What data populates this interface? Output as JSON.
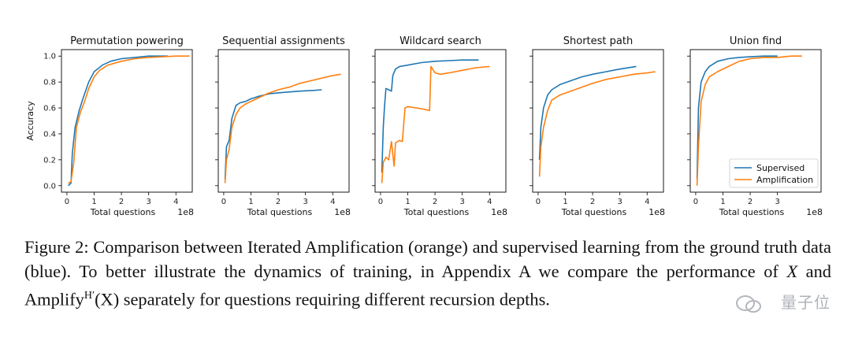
{
  "chart_data": [
    {
      "type": "line",
      "title": "Permutation powering",
      "xlabel": "Total questions",
      "ylabel": "Accuracy",
      "x_multiplier": "1e8",
      "xlim": [
        -0.2,
        4.6
      ],
      "ylim": [
        -0.05,
        1.05
      ],
      "xticks": [
        0,
        1,
        2,
        3,
        4
      ],
      "yticks": [
        0.0,
        0.2,
        0.4,
        0.6,
        0.8,
        1.0
      ],
      "series": [
        {
          "color": "#1f77b4",
          "points": [
            [
              0.05,
              0.0
            ],
            [
              0.15,
              0.02
            ],
            [
              0.2,
              0.25
            ],
            [
              0.3,
              0.45
            ],
            [
              0.45,
              0.58
            ],
            [
              0.6,
              0.68
            ],
            [
              0.8,
              0.8
            ],
            [
              1.0,
              0.88
            ],
            [
              1.3,
              0.93
            ],
            [
              1.6,
              0.96
            ],
            [
              2.0,
              0.98
            ],
            [
              2.5,
              0.99
            ],
            [
              3.0,
              1.0
            ],
            [
              3.7,
              1.0
            ]
          ]
        },
        {
          "color": "#ff7f0e",
          "points": [
            [
              0.05,
              0.02
            ],
            [
              0.15,
              0.03
            ],
            [
              0.25,
              0.18
            ],
            [
              0.35,
              0.45
            ],
            [
              0.5,
              0.57
            ],
            [
              0.65,
              0.65
            ],
            [
              0.8,
              0.75
            ],
            [
              1.0,
              0.84
            ],
            [
              1.2,
              0.89
            ],
            [
              1.5,
              0.93
            ],
            [
              2.0,
              0.96
            ],
            [
              2.5,
              0.98
            ],
            [
              3.0,
              0.99
            ],
            [
              3.5,
              0.995
            ],
            [
              4.0,
              1.0
            ],
            [
              4.5,
              1.0
            ]
          ]
        }
      ]
    },
    {
      "type": "line",
      "title": "Sequential assignments",
      "xlabel": "Total questions",
      "ylabel": "",
      "x_multiplier": "1e8",
      "xlim": [
        -0.2,
        4.6
      ],
      "ylim": [
        -0.05,
        1.05
      ],
      "xticks": [
        0,
        1,
        2,
        3,
        4
      ],
      "yticks": [
        0.0,
        0.2,
        0.4,
        0.6,
        0.8,
        1.0
      ],
      "series": [
        {
          "color": "#1f77b4",
          "points": [
            [
              0.05,
              0.05
            ],
            [
              0.1,
              0.3
            ],
            [
              0.2,
              0.35
            ],
            [
              0.3,
              0.52
            ],
            [
              0.45,
              0.62
            ],
            [
              0.6,
              0.64
            ],
            [
              0.8,
              0.65
            ],
            [
              1.0,
              0.67
            ],
            [
              1.3,
              0.69
            ],
            [
              1.7,
              0.71
            ],
            [
              2.2,
              0.72
            ],
            [
              2.8,
              0.73
            ],
            [
              3.3,
              0.735
            ],
            [
              3.6,
              0.74
            ]
          ]
        },
        {
          "color": "#ff7f0e",
          "points": [
            [
              0.05,
              0.02
            ],
            [
              0.1,
              0.2
            ],
            [
              0.2,
              0.28
            ],
            [
              0.3,
              0.45
            ],
            [
              0.45,
              0.55
            ],
            [
              0.6,
              0.6
            ],
            [
              0.8,
              0.63
            ],
            [
              1.0,
              0.65
            ],
            [
              1.3,
              0.68
            ],
            [
              1.6,
              0.71
            ],
            [
              2.0,
              0.74
            ],
            [
              2.4,
              0.76
            ],
            [
              2.8,
              0.79
            ],
            [
              3.2,
              0.81
            ],
            [
              3.6,
              0.83
            ],
            [
              4.0,
              0.85
            ],
            [
              4.3,
              0.86
            ]
          ]
        }
      ]
    },
    {
      "type": "line",
      "title": "Wildcard search",
      "xlabel": "Total questions",
      "ylabel": "",
      "x_multiplier": "1e8",
      "xlim": [
        -0.2,
        4.6
      ],
      "ylim": [
        -0.05,
        1.05
      ],
      "xticks": [
        0,
        1,
        2,
        3,
        4
      ],
      "yticks": [
        0.0,
        0.2,
        0.4,
        0.6,
        0.8,
        1.0
      ],
      "series": [
        {
          "color": "#1f77b4",
          "points": [
            [
              0.05,
              0.1
            ],
            [
              0.1,
              0.45
            ],
            [
              0.15,
              0.62
            ],
            [
              0.2,
              0.75
            ],
            [
              0.3,
              0.74
            ],
            [
              0.4,
              0.73
            ],
            [
              0.45,
              0.85
            ],
            [
              0.55,
              0.9
            ],
            [
              0.7,
              0.92
            ],
            [
              1.0,
              0.93
            ],
            [
              1.5,
              0.95
            ],
            [
              2.0,
              0.96
            ],
            [
              2.5,
              0.965
            ],
            [
              3.0,
              0.97
            ],
            [
              3.6,
              0.97
            ]
          ]
        },
        {
          "color": "#ff7f0e",
          "points": [
            [
              0.05,
              0.02
            ],
            [
              0.1,
              0.18
            ],
            [
              0.2,
              0.22
            ],
            [
              0.3,
              0.2
            ],
            [
              0.4,
              0.34
            ],
            [
              0.5,
              0.15
            ],
            [
              0.55,
              0.33
            ],
            [
              0.7,
              0.35
            ],
            [
              0.8,
              0.34
            ],
            [
              0.9,
              0.6
            ],
            [
              1.0,
              0.61
            ],
            [
              1.3,
              0.6
            ],
            [
              1.6,
              0.59
            ],
            [
              1.8,
              0.58
            ],
            [
              1.85,
              0.92
            ],
            [
              2.0,
              0.87
            ],
            [
              2.2,
              0.86
            ],
            [
              2.5,
              0.87
            ],
            [
              3.0,
              0.89
            ],
            [
              3.5,
              0.91
            ],
            [
              4.0,
              0.92
            ]
          ]
        }
      ]
    },
    {
      "type": "line",
      "title": "Shortest path",
      "xlabel": "Total questions",
      "ylabel": "",
      "x_multiplier": "1e8",
      "xlim": [
        -0.2,
        4.6
      ],
      "ylim": [
        -0.05,
        1.05
      ],
      "xticks": [
        0,
        1,
        2,
        3,
        4
      ],
      "yticks": [
        0.0,
        0.2,
        0.4,
        0.6,
        0.8,
        1.0
      ],
      "series": [
        {
          "color": "#1f77b4",
          "points": [
            [
              0.05,
              0.2
            ],
            [
              0.1,
              0.45
            ],
            [
              0.2,
              0.6
            ],
            [
              0.35,
              0.7
            ],
            [
              0.5,
              0.74
            ],
            [
              0.8,
              0.78
            ],
            [
              1.2,
              0.81
            ],
            [
              1.6,
              0.84
            ],
            [
              2.0,
              0.86
            ],
            [
              2.5,
              0.88
            ],
            [
              3.0,
              0.9
            ],
            [
              3.6,
              0.92
            ]
          ]
        },
        {
          "color": "#ff7f0e",
          "points": [
            [
              0.05,
              0.07
            ],
            [
              0.1,
              0.3
            ],
            [
              0.2,
              0.45
            ],
            [
              0.35,
              0.58
            ],
            [
              0.5,
              0.66
            ],
            [
              0.8,
              0.7
            ],
            [
              1.2,
              0.73
            ],
            [
              1.6,
              0.76
            ],
            [
              2.0,
              0.79
            ],
            [
              2.5,
              0.82
            ],
            [
              3.0,
              0.84
            ],
            [
              3.5,
              0.86
            ],
            [
              4.0,
              0.87
            ],
            [
              4.3,
              0.88
            ]
          ]
        }
      ]
    },
    {
      "type": "line",
      "title": "Union find",
      "xlabel": "Total questions",
      "ylabel": "",
      "x_multiplier": "1e8",
      "xlim": [
        -0.2,
        4.6
      ],
      "ylim": [
        -0.05,
        1.05
      ],
      "xticks": [
        0,
        1,
        2,
        3
      ],
      "yticks": [
        0.0,
        0.2,
        0.4,
        0.6,
        0.8,
        1.0
      ],
      "legend": {
        "position": "lower-right",
        "entries": [
          "Supervised",
          "Amplification"
        ]
      },
      "series": [
        {
          "name": "Supervised",
          "color": "#1f77b4",
          "points": [
            [
              0.05,
              0.05
            ],
            [
              0.1,
              0.6
            ],
            [
              0.2,
              0.8
            ],
            [
              0.35,
              0.88
            ],
            [
              0.5,
              0.92
            ],
            [
              0.8,
              0.96
            ],
            [
              1.2,
              0.98
            ],
            [
              1.6,
              0.99
            ],
            [
              2.0,
              0.995
            ],
            [
              2.5,
              1.0
            ],
            [
              3.0,
              1.0
            ]
          ]
        },
        {
          "name": "Amplification",
          "color": "#ff7f0e",
          "points": [
            [
              0.05,
              0.0
            ],
            [
              0.1,
              0.3
            ],
            [
              0.2,
              0.65
            ],
            [
              0.35,
              0.78
            ],
            [
              0.5,
              0.84
            ],
            [
              0.8,
              0.88
            ],
            [
              1.2,
              0.92
            ],
            [
              1.6,
              0.96
            ],
            [
              2.0,
              0.98
            ],
            [
              2.5,
              0.99
            ],
            [
              3.0,
              0.99
            ],
            [
              3.5,
              1.0
            ],
            [
              3.9,
              1.0
            ]
          ]
        }
      ]
    }
  ],
  "caption": {
    "prefix": "Figure 2: Comparison between Iterated Amplification (orange) and supervised learning from the ground truth data (blue). To better illustrate the dynamics of training, in Appendix A we compare the performance of ",
    "var_x": "X",
    "mid": " and ",
    "amplify": "Amplify",
    "amplify_sup": "H′",
    "amplify_arg": "(X)",
    "suffix": " separately for questions requiring different recursion depths."
  },
  "watermark": "量子位"
}
